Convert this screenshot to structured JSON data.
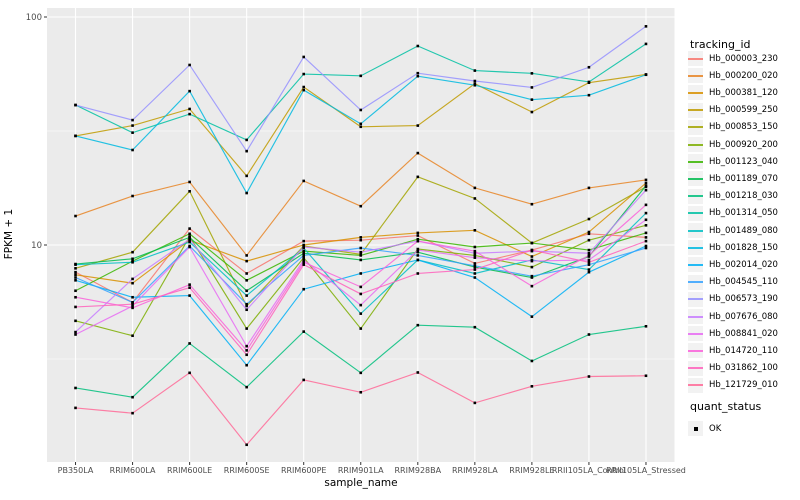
{
  "chart_data": {
    "type": "line",
    "title": "",
    "xlabel": "sample_name",
    "ylabel": "FPKM + 1",
    "y_scale": "log10",
    "ylim": [
      1.1,
      110
    ],
    "y_major_ticks": [
      10,
      100
    ],
    "y_minor_gridlines": [
      3.162,
      31.62
    ],
    "grid": "major-and-minor, white on grey panel",
    "legend_position": "right",
    "panel_bg": "#EBEBEB",
    "grid_color": "#FFFFFF",
    "point_shape": "black-square",
    "categories": [
      "PB350LA",
      "RRIM600LA",
      "RRIM600LE",
      "RRIM600SE",
      "RRIM600PE",
      "RRIM901LA",
      "RRIM928BA",
      "RRIM928LA",
      "RRIM928LE",
      "RRII105LA_Control",
      "RRII105LA_Stressed"
    ],
    "series": [
      {
        "name": "Hb_000003_230",
        "color": "#F8766D",
        "values": [
          7.6,
          5.6,
          11.8,
          7.5,
          10.4,
          10.5,
          11.0,
          8.3,
          9.5,
          11.2,
          10.8
        ]
      },
      {
        "name": "Hb_000200_020",
        "color": "#E88526",
        "values": [
          13.4,
          16.4,
          18.9,
          9.0,
          19.1,
          14.8,
          25.3,
          17.8,
          15.1,
          17.8,
          19.3
        ]
      },
      {
        "name": "Hb_000381_120",
        "color": "#D89000",
        "values": [
          7.4,
          6.8,
          10.5,
          8.5,
          10.0,
          10.8,
          11.3,
          11.6,
          8.9,
          11.4,
          18.7
        ]
      },
      {
        "name": "Hb_000599_250",
        "color": "#C09B00",
        "values": [
          30.1,
          33.4,
          39.5,
          20.1,
          49.3,
          33.0,
          33.4,
          51.0,
          38.3,
          51.5,
          56.0
        ]
      },
      {
        "name": "Hb_000853_150",
        "color": "#A3A500",
        "values": [
          7.9,
          9.3,
          17.2,
          5.4,
          9.9,
          9.1,
          19.9,
          16.0,
          10.2,
          13.0,
          18.0
        ]
      },
      {
        "name": "Hb_000920_200",
        "color": "#7CAE00",
        "values": [
          4.65,
          4.0,
          10.9,
          4.3,
          8.8,
          4.3,
          9.6,
          9.0,
          8.0,
          10.5,
          12.2
        ]
      },
      {
        "name": "Hb_001123_040",
        "color": "#39B600",
        "values": [
          6.3,
          8.5,
          11.2,
          7.0,
          9.4,
          9.0,
          10.6,
          9.8,
          10.2,
          9.5,
          11.3
        ]
      },
      {
        "name": "Hb_001189_070",
        "color": "#00BB4E",
        "values": [
          8.25,
          8.7,
          10.8,
          6.3,
          9.2,
          8.6,
          9.3,
          8.0,
          7.2,
          8.9,
          18.2
        ]
      },
      {
        "name": "Hb_001218_030",
        "color": "#00BF7D",
        "values": [
          2.36,
          2.15,
          3.7,
          2.38,
          4.17,
          2.75,
          4.45,
          4.36,
          3.1,
          4.05,
          4.4
        ]
      },
      {
        "name": "Hb_001314_050",
        "color": "#00C1A3",
        "values": [
          41.1,
          31.1,
          37.5,
          28.9,
          56.2,
          55.2,
          74.6,
          58.2,
          56.6,
          51.9,
          76.2
        ]
      },
      {
        "name": "Hb_001489_080",
        "color": "#00BFC4",
        "values": [
          8.2,
          8.4,
          10.3,
          6.0,
          9.7,
          5.0,
          8.6,
          7.5,
          8.6,
          7.8,
          13.8
        ]
      },
      {
        "name": "Hb_001828_150",
        "color": "#00BAE0",
        "values": [
          30.1,
          26.1,
          47.3,
          16.9,
          47.8,
          34.0,
          55.0,
          50.2,
          43.4,
          45.4,
          55.8
        ]
      },
      {
        "name": "Hb_002014_020",
        "color": "#00B0F6",
        "values": [
          7.0,
          5.9,
          6.0,
          2.97,
          6.4,
          7.5,
          8.6,
          7.2,
          4.85,
          7.6,
          9.9
        ]
      },
      {
        "name": "Hb_004545_110",
        "color": "#35A2FF",
        "values": [
          7.2,
          5.6,
          9.9,
          5.5,
          9.0,
          9.7,
          9.0,
          8.1,
          7.3,
          8.2,
          9.7
        ]
      },
      {
        "name": "Hb_006573_190",
        "color": "#9590FF",
        "values": [
          41.1,
          35.3,
          61.6,
          25.8,
          66.8,
          39.1,
          56.7,
          52.4,
          49.1,
          60.2,
          91.0
        ]
      },
      {
        "name": "Hb_007676_080",
        "color": "#C77CFF",
        "values": [
          4.15,
          7.1,
          10.6,
          5.2,
          9.8,
          9.3,
          10.4,
          9.2,
          9.4,
          9.2,
          17.4
        ]
      },
      {
        "name": "Hb_008841_020",
        "color": "#E76BF3",
        "values": [
          4.05,
          5.4,
          9.8,
          3.6,
          8.6,
          5.45,
          9.5,
          8.8,
          8.5,
          8.6,
          12.9
        ]
      },
      {
        "name": "Hb_014720_110",
        "color": "#FA62DB",
        "values": [
          5.9,
          5.3,
          6.7,
          3.45,
          8.4,
          6.55,
          10.4,
          9.4,
          6.6,
          9.0,
          15.0
        ]
      },
      {
        "name": "Hb_031862_100",
        "color": "#FF62BC",
        "values": [
          5.35,
          5.5,
          6.5,
          3.3,
          8.2,
          6.1,
          7.5,
          7.8,
          9.5,
          8.4,
          10.4
        ]
      },
      {
        "name": "Hb_121729_010",
        "color": "#FF6A98",
        "values": [
          1.93,
          1.83,
          2.75,
          1.33,
          2.56,
          2.26,
          2.76,
          2.03,
          2.4,
          2.65,
          2.67
        ]
      }
    ]
  },
  "legend": {
    "tracking_title": "tracking_id",
    "quant_title": "quant_status",
    "quant_items": [
      {
        "label": "OK",
        "marker": "black-square"
      }
    ]
  },
  "axis": {
    "tick_color": "#333333",
    "text_color": "#4D4D4D"
  }
}
